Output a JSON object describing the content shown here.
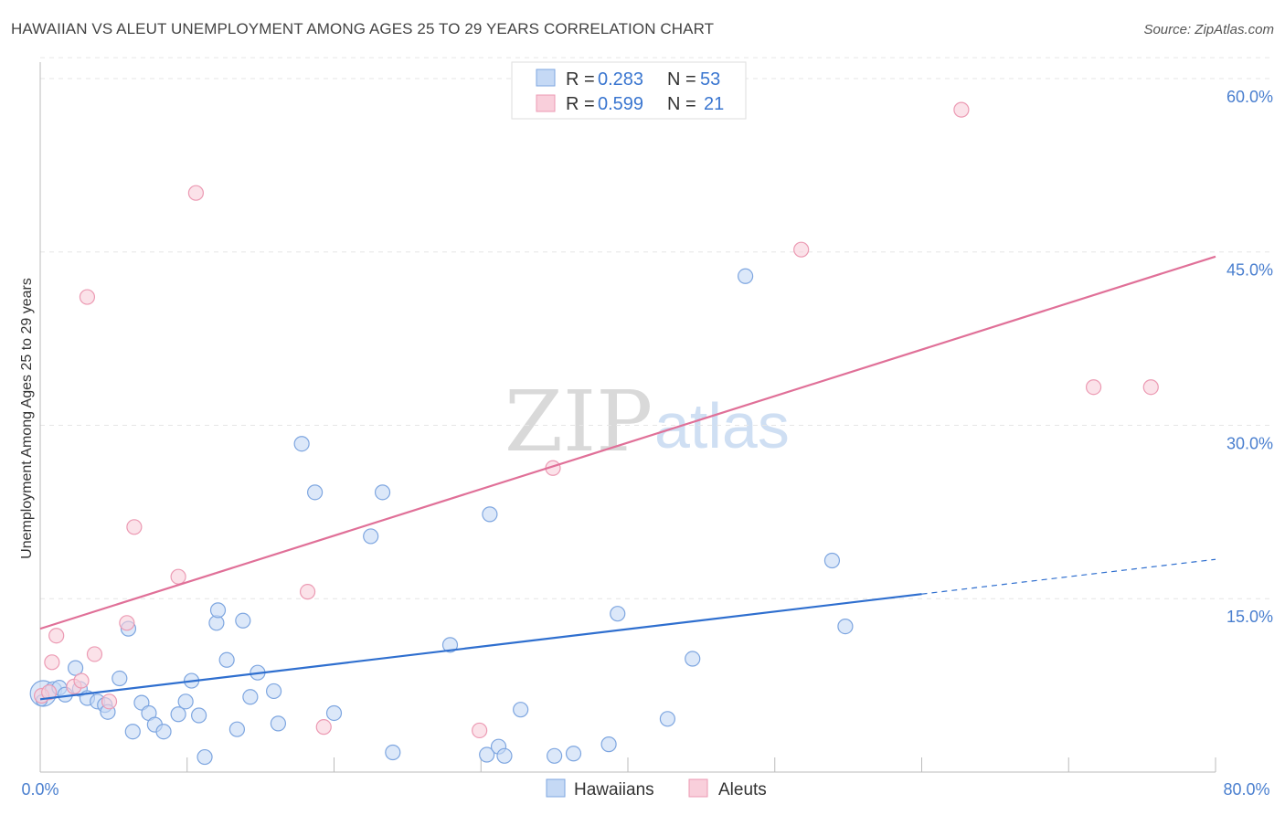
{
  "title": "HAWAIIAN VS ALEUT UNEMPLOYMENT AMONG AGES 25 TO 29 YEARS CORRELATION CHART",
  "source": "Source: ZipAtlas.com",
  "watermark": {
    "zip": "ZIP",
    "atlas": "atlas"
  },
  "colors": {
    "hawaiians_fill": "#c5d9f5",
    "hawaiians_stroke": "#7ea6e0",
    "hawaiians_line": "#2f6fcf",
    "aleuts_fill": "#f9cfdb",
    "aleuts_stroke": "#ec9ab3",
    "aleuts_line": "#e07098",
    "tick_text": "#4a7fcf",
    "grid": "#e6e6e6"
  },
  "legend": {
    "rows": [
      {
        "r_label": "R = ",
        "r_value": "0.283",
        "n_label": "N = ",
        "n_value": "53"
      },
      {
        "r_label": "R = ",
        "r_value": "0.599",
        "n_label": "N = ",
        "n_value": "21"
      }
    ]
  },
  "chart_data": {
    "type": "scatter",
    "title": "HAWAIIAN VS ALEUT UNEMPLOYMENT AMONG AGES 25 TO 29 YEARS CORRELATION CHART",
    "xlabel": "",
    "ylabel": "Unemployment Among Ages 25 to 29 years",
    "xlim": [
      0,
      80
    ],
    "ylim": [
      0,
      63
    ],
    "x_tick_labels": [
      "0.0%",
      "80.0%"
    ],
    "y_ticks": [
      15,
      30,
      45,
      60
    ],
    "y_tick_labels": [
      "15.0%",
      "30.0%",
      "45.0%",
      "60.0%"
    ],
    "series": [
      {
        "name": "Hawaiians",
        "R": 0.283,
        "N": 53,
        "trend": {
          "x0": 0,
          "y0": 6.3,
          "x1": 60,
          "y1": 15.4,
          "dash_to_x": 80,
          "dash_to_y": 18.4
        },
        "points": [
          [
            0.2,
            6.8,
            14
          ],
          [
            0.9,
            7.1,
            9
          ],
          [
            1.3,
            7.3,
            8
          ],
          [
            1.7,
            6.7,
            8
          ],
          [
            2.4,
            9.0,
            8
          ],
          [
            2.7,
            7.2,
            8
          ],
          [
            3.2,
            6.4,
            8
          ],
          [
            3.9,
            6.1,
            8
          ],
          [
            4.4,
            5.8,
            8
          ],
          [
            4.6,
            5.2,
            8
          ],
          [
            5.4,
            8.1,
            8
          ],
          [
            6.0,
            12.4,
            8
          ],
          [
            6.3,
            3.5,
            8
          ],
          [
            6.9,
            6.0,
            8
          ],
          [
            7.4,
            5.1,
            8
          ],
          [
            7.8,
            4.1,
            8
          ],
          [
            8.4,
            3.5,
            8
          ],
          [
            9.4,
            5.0,
            8
          ],
          [
            9.9,
            6.1,
            8
          ],
          [
            10.3,
            7.9,
            8
          ],
          [
            10.8,
            4.9,
            8
          ],
          [
            11.2,
            1.3,
            8
          ],
          [
            12.0,
            12.9,
            8
          ],
          [
            12.1,
            14.0,
            8
          ],
          [
            12.7,
            9.7,
            8
          ],
          [
            13.4,
            3.7,
            8
          ],
          [
            13.8,
            13.1,
            8
          ],
          [
            14.3,
            6.5,
            8
          ],
          [
            14.8,
            8.6,
            8
          ],
          [
            15.9,
            7.0,
            8
          ],
          [
            16.2,
            4.2,
            8
          ],
          [
            17.8,
            28.4,
            8
          ],
          [
            18.7,
            24.2,
            8
          ],
          [
            20.0,
            5.1,
            8
          ],
          [
            22.5,
            20.4,
            8
          ],
          [
            23.3,
            24.2,
            8
          ],
          [
            24.0,
            1.7,
            8
          ],
          [
            27.9,
            11.0,
            8
          ],
          [
            30.4,
            1.5,
            8
          ],
          [
            30.6,
            22.3,
            8
          ],
          [
            31.2,
            2.2,
            8
          ],
          [
            31.6,
            1.4,
            8
          ],
          [
            32.7,
            5.4,
            8
          ],
          [
            35.0,
            1.4,
            8
          ],
          [
            36.3,
            1.6,
            8
          ],
          [
            38.7,
            2.4,
            8
          ],
          [
            39.3,
            13.7,
            8
          ],
          [
            42.7,
            4.6,
            8
          ],
          [
            44.4,
            9.8,
            8
          ],
          [
            48.0,
            42.9,
            8
          ],
          [
            53.9,
            18.3,
            8
          ],
          [
            54.8,
            12.6,
            8
          ],
          [
            0.1,
            6.2,
            6
          ]
        ]
      },
      {
        "name": "Aleuts",
        "R": 0.599,
        "N": 21,
        "trend": {
          "x0": 0,
          "y0": 12.4,
          "x1": 80,
          "y1": 44.6
        },
        "points": [
          [
            0.1,
            6.6,
            8
          ],
          [
            0.6,
            6.9,
            8
          ],
          [
            0.8,
            9.5,
            8
          ],
          [
            1.1,
            11.8,
            8
          ],
          [
            2.3,
            7.4,
            8
          ],
          [
            2.8,
            7.9,
            8
          ],
          [
            3.2,
            41.1,
            8
          ],
          [
            3.7,
            10.2,
            8
          ],
          [
            4.7,
            6.1,
            8
          ],
          [
            5.9,
            12.9,
            8
          ],
          [
            6.4,
            21.2,
            8
          ],
          [
            9.4,
            16.9,
            8
          ],
          [
            10.6,
            50.1,
            8
          ],
          [
            18.2,
            15.6,
            8
          ],
          [
            19.3,
            3.9,
            8
          ],
          [
            29.9,
            3.6,
            8
          ],
          [
            34.9,
            26.3,
            8
          ],
          [
            51.8,
            45.2,
            8
          ],
          [
            62.7,
            57.3,
            8
          ],
          [
            71.7,
            33.3,
            8
          ],
          [
            75.6,
            33.3,
            8
          ]
        ]
      }
    ],
    "legend_position": "top-center",
    "bottom_legend": [
      "Hawaiians",
      "Aleuts"
    ],
    "grid": true
  }
}
